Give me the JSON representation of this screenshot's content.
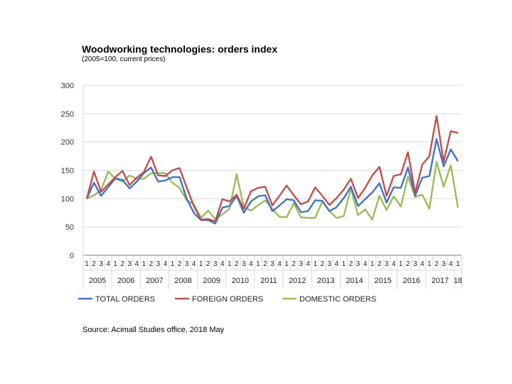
{
  "header": {
    "title": "Woodworking technologies: orders index",
    "subtitle": "(2005=100, current prices)"
  },
  "footer": {
    "source": "Source: Acimall Studies office, 2018 May"
  },
  "colors": {
    "total": "#4472C4",
    "foreign": "#C0504D",
    "domestic": "#9BBB59",
    "grid": "#D9D9D9",
    "axis": "#808080"
  },
  "chart_data": {
    "type": "line",
    "grid": true,
    "legend_position": "bottom",
    "ylim": [
      0,
      300
    ],
    "yticks": [
      0,
      50,
      100,
      150,
      200,
      250,
      300
    ],
    "quarter_labels": [
      "1",
      "2",
      "3",
      "4",
      "1",
      "2",
      "3",
      "4",
      "1",
      "2",
      "3",
      "4",
      "1",
      "2",
      "3",
      "4",
      "1",
      "2",
      "3",
      "4",
      "1",
      "2",
      "3",
      "4",
      "1",
      "2",
      "3",
      "4",
      "1",
      "2",
      "3",
      "4",
      "1",
      "2",
      "3",
      "4",
      "1",
      "2",
      "3",
      "4",
      "1",
      "2",
      "3",
      "4",
      "1",
      "2",
      "3",
      "4",
      "1",
      "2",
      "3",
      "4",
      "1"
    ],
    "year_groups": [
      {
        "label": "2005",
        "quarters": 4
      },
      {
        "label": "2006",
        "quarters": 4
      },
      {
        "label": "2007",
        "quarters": 4
      },
      {
        "label": "2008",
        "quarters": 4
      },
      {
        "label": "2009",
        "quarters": 4
      },
      {
        "label": "2010",
        "quarters": 4
      },
      {
        "label": "2011",
        "quarters": 4
      },
      {
        "label": "2012",
        "quarters": 4
      },
      {
        "label": "2013",
        "quarters": 4
      },
      {
        "label": "2014",
        "quarters": 4
      },
      {
        "label": "2015",
        "quarters": 4
      },
      {
        "label": "2016",
        "quarters": 4
      },
      {
        "label": "2017",
        "quarters": 4
      },
      {
        "label": "18",
        "quarters": 1
      }
    ],
    "series": [
      {
        "key": "total",
        "name": "TOTAL ORDERS",
        "values": [
          100,
          128,
          105,
          120,
          136,
          133,
          118,
          130,
          145,
          155,
          130,
          132,
          138,
          138,
          100,
          75,
          62,
          62,
          56,
          84,
          87,
          105,
          75,
          95,
          104,
          106,
          78,
          88,
          99,
          97,
          76,
          78,
          97,
          96,
          78,
          85,
          101,
          121,
          87,
          99,
          111,
          127,
          93,
          120,
          119,
          155,
          105,
          137,
          140,
          205,
          157,
          187,
          166
        ]
      },
      {
        "key": "foreign",
        "name": "FOREIGN ORDERS",
        "values": [
          100,
          148,
          112,
          125,
          138,
          149,
          124,
          137,
          147,
          174,
          141,
          140,
          150,
          154,
          120,
          87,
          63,
          64,
          60,
          99,
          95,
          107,
          82,
          113,
          119,
          121,
          88,
          105,
          123,
          106,
          90,
          95,
          120,
          105,
          89,
          101,
          116,
          135,
          101,
          119,
          141,
          156,
          105,
          140,
          143,
          182,
          110,
          160,
          175,
          246,
          165,
          219,
          216
        ]
      },
      {
        "key": "domestic",
        "name": "DOMESTIC ORDERS",
        "values": [
          100,
          106,
          115,
          148,
          135,
          130,
          141,
          135,
          135,
          145,
          145,
          145,
          128,
          119,
          97,
          90,
          66,
          79,
          64,
          72,
          82,
          143,
          85,
          79,
          88,
          97,
          82,
          68,
          67,
          92,
          67,
          66,
          66,
          95,
          78,
          66,
          69,
          118,
          71,
          81,
          63,
          105,
          80,
          104,
          86,
          139,
          103,
          107,
          82,
          165,
          121,
          159,
          84
        ]
      }
    ]
  }
}
